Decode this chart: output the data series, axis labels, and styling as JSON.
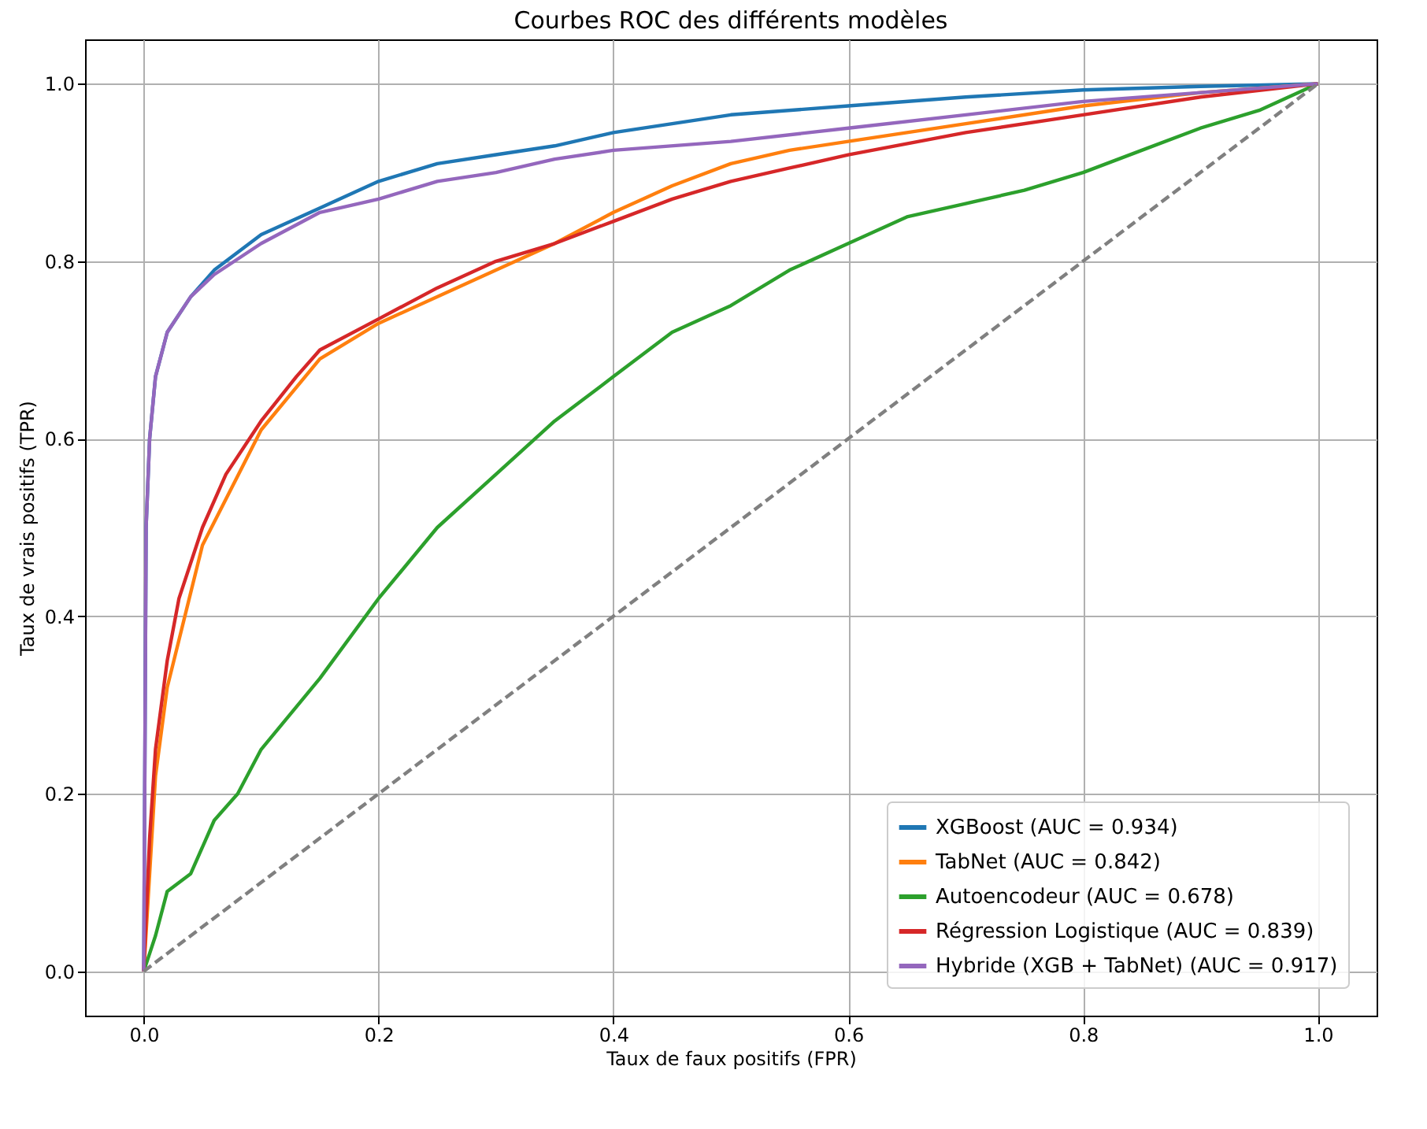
{
  "chart_data": {
    "type": "line",
    "title": "Courbes ROC des différents modèles",
    "xlabel": "Taux de faux positifs (FPR)",
    "ylabel": "Taux de vrais positifs (TPR)",
    "xlim": [
      -0.05,
      1.05
    ],
    "ylim": [
      -0.05,
      1.05
    ],
    "xticks": [
      {
        "value": 0,
        "label": "0.0"
      },
      {
        "value": 0.2,
        "label": "0.2"
      },
      {
        "value": 0.4,
        "label": "0.4"
      },
      {
        "value": 0.6,
        "label": "0.6"
      },
      {
        "value": 0.8,
        "label": "0.8"
      },
      {
        "value": 1,
        "label": "1.0"
      }
    ],
    "yticks": [
      {
        "value": 0,
        "label": "0.0"
      },
      {
        "value": 0.2,
        "label": "0.2"
      },
      {
        "value": 0.4,
        "label": "0.4"
      },
      {
        "value": 0.6,
        "label": "0.6"
      },
      {
        "value": 0.8,
        "label": "0.8"
      },
      {
        "value": 1,
        "label": "1.0"
      }
    ],
    "grid": true,
    "legend": "bottom right",
    "line_style": "solid",
    "series": [
      {
        "name": "XGBoost (AUC = 0.934)",
        "color": "#1f77b4",
        "x": [
          0,
          0.002,
          0.005,
          0.01,
          0.02,
          0.04,
          0.06,
          0.1,
          0.15,
          0.2,
          0.25,
          0.3,
          0.35,
          0.4,
          0.45,
          0.5,
          0.6,
          0.7,
          0.8,
          0.9,
          1
        ],
        "values": [
          0,
          0.5,
          0.6,
          0.67,
          0.72,
          0.76,
          0.79,
          0.83,
          0.86,
          0.89,
          0.91,
          0.92,
          0.93,
          0.945,
          0.955,
          0.965,
          0.975,
          0.985,
          0.993,
          0.997,
          1
        ]
      },
      {
        "name": "TabNet (AUC = 0.842)",
        "color": "#ff7f0e",
        "x": [
          0,
          0.01,
          0.02,
          0.05,
          0.1,
          0.15,
          0.2,
          0.3,
          0.35,
          0.4,
          0.45,
          0.5,
          0.55,
          0.6,
          0.7,
          0.8,
          0.9,
          1
        ],
        "values": [
          0,
          0.22,
          0.32,
          0.48,
          0.61,
          0.69,
          0.73,
          0.79,
          0.82,
          0.855,
          0.885,
          0.91,
          0.925,
          0.935,
          0.955,
          0.975,
          0.99,
          1
        ]
      },
      {
        "name": "Autoencodeur (AUC = 0.678)",
        "color": "#2ca02c",
        "x": [
          0,
          0.01,
          0.02,
          0.04,
          0.06,
          0.08,
          0.1,
          0.15,
          0.2,
          0.25,
          0.3,
          0.35,
          0.4,
          0.45,
          0.5,
          0.55,
          0.6,
          0.65,
          0.7,
          0.75,
          0.8,
          0.85,
          0.9,
          0.95,
          1
        ],
        "values": [
          0,
          0.04,
          0.09,
          0.11,
          0.17,
          0.2,
          0.25,
          0.33,
          0.42,
          0.5,
          0.56,
          0.62,
          0.67,
          0.72,
          0.75,
          0.79,
          0.82,
          0.85,
          0.865,
          0.88,
          0.9,
          0.925,
          0.95,
          0.97,
          1
        ]
      },
      {
        "name": "Régression Logistique (AUC = 0.839)",
        "color": "#d62728",
        "x": [
          0,
          0.005,
          0.01,
          0.02,
          0.03,
          0.05,
          0.07,
          0.1,
          0.13,
          0.15,
          0.2,
          0.25,
          0.3,
          0.35,
          0.4,
          0.45,
          0.5,
          0.55,
          0.6,
          0.7,
          0.8,
          0.9,
          1
        ],
        "values": [
          0,
          0.15,
          0.25,
          0.35,
          0.42,
          0.5,
          0.56,
          0.62,
          0.67,
          0.7,
          0.735,
          0.77,
          0.8,
          0.82,
          0.845,
          0.87,
          0.89,
          0.905,
          0.92,
          0.945,
          0.965,
          0.985,
          1
        ]
      },
      {
        "name": "Hybride (XGB + TabNet) (AUC = 0.917)",
        "color": "#9467bd",
        "x": [
          0,
          0.002,
          0.005,
          0.01,
          0.02,
          0.04,
          0.06,
          0.1,
          0.15,
          0.2,
          0.25,
          0.3,
          0.35,
          0.4,
          0.5,
          0.6,
          0.7,
          0.8,
          0.9,
          1
        ],
        "values": [
          0,
          0.5,
          0.6,
          0.67,
          0.72,
          0.76,
          0.785,
          0.82,
          0.855,
          0.87,
          0.89,
          0.9,
          0.915,
          0.925,
          0.935,
          0.95,
          0.965,
          0.98,
          0.99,
          1
        ]
      },
      {
        "color": "#808080",
        "line_style": "dashed",
        "x": [
          0,
          1
        ],
        "values": [
          0,
          1
        ]
      }
    ]
  }
}
